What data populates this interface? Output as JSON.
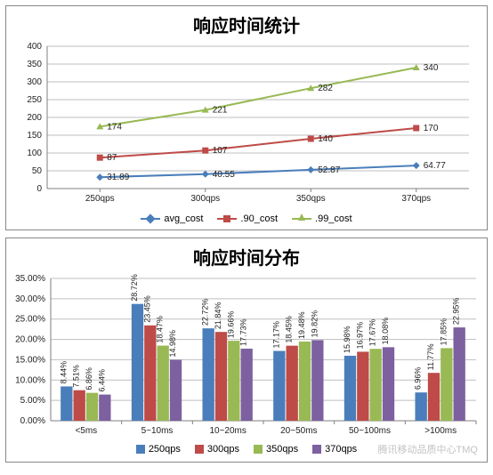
{
  "line_chart": {
    "type": "line",
    "title": "响应时间统计",
    "title_fontsize": 20,
    "categories": [
      "250qps",
      "300qps",
      "350qps",
      "370qps"
    ],
    "ylim": [
      0,
      400
    ],
    "ytick_step": 50,
    "yticks": [
      0,
      50,
      100,
      150,
      200,
      250,
      300,
      350,
      400
    ],
    "background_color": "#ffffff",
    "grid_color": "#bfbfbf",
    "axis_color": "#7f7f7f",
    "tick_fontsize": 10,
    "label_fontsize": 10,
    "series": [
      {
        "name": "avg_cost",
        "color": "#4a7ebb",
        "marker": "diamond",
        "line_width": 2,
        "values": [
          31.89,
          40.55,
          52.87,
          64.77
        ],
        "labels": [
          "31.89",
          "40.55",
          "52.87",
          "64.77"
        ]
      },
      {
        "name": ".90_cost",
        "color": "#be4b48",
        "marker": "square",
        "line_width": 2,
        "values": [
          87,
          107,
          140,
          170
        ],
        "labels": [
          "87",
          "107",
          "140",
          "170"
        ]
      },
      {
        "name": ".99_cost",
        "color": "#98b954",
        "marker": "triangle",
        "line_width": 2,
        "values": [
          174,
          221,
          282,
          340
        ],
        "labels": [
          "174",
          "221",
          "282",
          "340"
        ]
      }
    ]
  },
  "bar_chart": {
    "type": "bar",
    "title": "响应时间分布",
    "title_fontsize": 20,
    "categories": [
      "<5ms",
      "5~10ms",
      "10~20ms",
      "20~50ms",
      "50~100ms",
      ">100ms"
    ],
    "ylim": [
      0,
      35
    ],
    "ytick_step": 5,
    "yticks": [
      0,
      5,
      10,
      15,
      20,
      25,
      30,
      35
    ],
    "ytick_labels": [
      "0.00%",
      "5.00%",
      "10.00%",
      "15.00%",
      "20.00%",
      "25.00%",
      "30.00%",
      "35.00%"
    ],
    "background_color": "#ffffff",
    "grid_color": "#bfbfbf",
    "axis_color": "#7f7f7f",
    "tick_fontsize": 10,
    "label_fontsize": 9,
    "bar_width": 0.18,
    "series": [
      {
        "name": "250qps",
        "color": "#4a7ebb",
        "values": [
          8.44,
          28.72,
          22.72,
          17.17,
          15.98,
          6.96
        ],
        "labels": [
          "8.44%",
          "28.72%",
          "22.72%",
          "17.17%",
          "15.98%",
          "6.96%"
        ]
      },
      {
        "name": "300qps",
        "color": "#be4b48",
        "values": [
          7.51,
          23.45,
          21.84,
          18.45,
          16.97,
          11.77
        ],
        "labels": [
          "7.51%",
          "23.45%",
          "21.84%",
          "18.45%",
          "16.97%",
          "11.77%"
        ]
      },
      {
        "name": "350qps",
        "color": "#98b954",
        "values": [
          6.86,
          18.47,
          19.66,
          19.48,
          17.67,
          17.85
        ],
        "labels": [
          "6.86%",
          "18.47%",
          "19.66%",
          "19.48%",
          "17.67%",
          "17.85%"
        ]
      },
      {
        "name": "370qps",
        "color": "#7d60a0",
        "values": [
          6.44,
          14.98,
          17.73,
          19.82,
          18.08,
          22.95
        ],
        "labels": [
          "6.44%",
          "14.98%",
          "17.73%",
          "19.82%",
          "18.08%",
          "22.95%"
        ]
      }
    ]
  },
  "watermark": "腾讯移动品质中心TMQ"
}
